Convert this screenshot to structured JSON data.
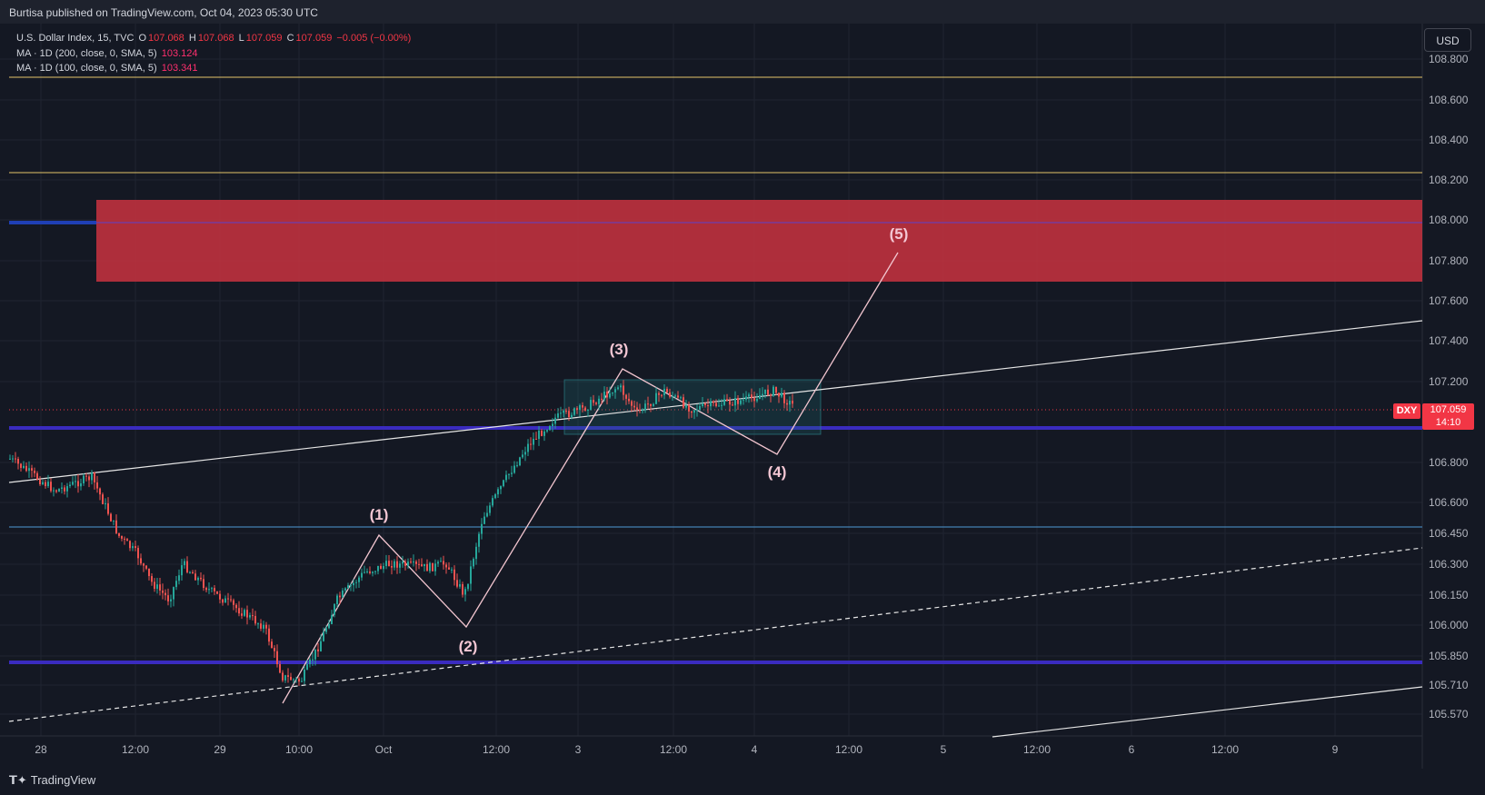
{
  "header": {
    "published": "Burtisa published on TradingView.com, Oct 04, 2023 05:30 UTC"
  },
  "legend": {
    "symbol": "U.S. Dollar Index, 15, TVC",
    "o_label": "O",
    "o_value": "107.068",
    "h_label": "H",
    "h_value": "107.068",
    "l_label": "L",
    "l_value": "107.059",
    "c_label": "C",
    "c_value": "107.059",
    "change": "−0.005 (−0.00%)",
    "ma200_label": "MA · 1D (200, close, 0, SMA, 5)",
    "ma200_value": "103.124",
    "ma100_label": "MA · 1D (100, close, 0, SMA, 5)",
    "ma100_value": "103.341"
  },
  "currency_button": "USD",
  "price_axis": [
    "108.800",
    "108.600",
    "108.400",
    "108.200",
    "108.000",
    "107.800",
    "107.600",
    "107.400",
    "107.200",
    "106.800",
    "106.600",
    "106.450",
    "106.300",
    "106.150",
    "106.000",
    "105.850",
    "105.710",
    "105.570"
  ],
  "time_axis": [
    "28",
    "12:00",
    "29",
    "10:00",
    "Oct",
    "12:00",
    "3",
    "12:00",
    "4",
    "12:00",
    "5",
    "12:00",
    "6",
    "12:00",
    "9"
  ],
  "symbol_badge": "DXY",
  "last_price": "107.059",
  "countdown": "14:10",
  "waves": [
    "(1)",
    "(2)",
    "(3)",
    "(4)",
    "(5)"
  ],
  "colors": {
    "background": "#131722",
    "up_candle": "#26a69a",
    "down_candle": "#ef5350",
    "resistance_zone": "#c9323f",
    "horizontal_blue": "#3a2bbf",
    "horizontal_gold": "#e5c56a",
    "wave_lines": "#f2c5cf"
  },
  "footer": {
    "brand": "TradingView"
  }
}
